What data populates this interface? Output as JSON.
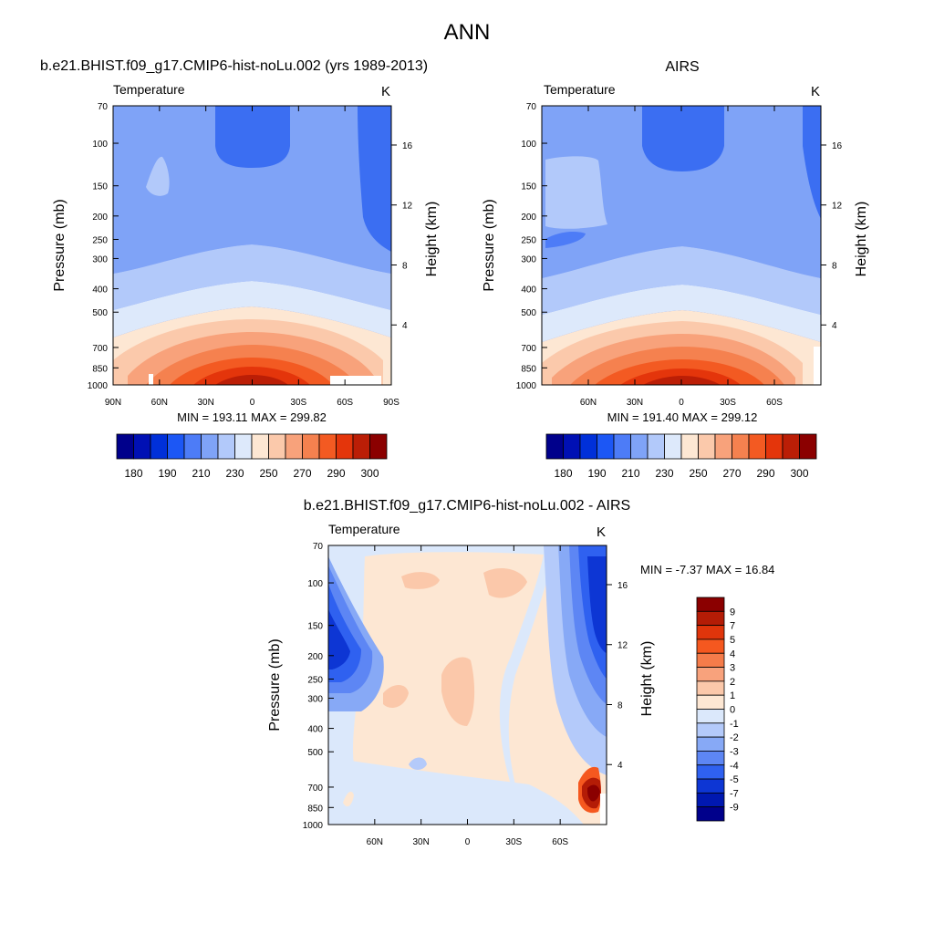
{
  "page_title": "ANN",
  "chart_data": [
    {
      "type": "heatmap",
      "title": "b.e21.BHIST.f09_g17.CMIP6-hist-noLu.002 (yrs 1989-2013)",
      "variable": "Temperature",
      "units": "K",
      "xlabel": "",
      "ylabel": "Pressure (mb)",
      "y2label": "Height (km)",
      "x_ticks": [
        "90N",
        "60N",
        "30N",
        "0",
        "30S",
        "60S",
        "90S"
      ],
      "x_range": [
        90,
        -90
      ],
      "y_ticks": [
        "70",
        "100",
        "150",
        "200",
        "250",
        "300",
        "400",
        "500",
        "700",
        "850",
        "1000"
      ],
      "y_range": [
        70,
        1000
      ],
      "y_scale": "log",
      "height_ticks": [
        "4",
        "8",
        "12",
        "16"
      ],
      "stats": "MIN = 193.11  MAX = 299.82",
      "colorbar": {
        "orientation": "horizontal",
        "labels": [
          "180",
          "190",
          "210",
          "230",
          "250",
          "270",
          "290",
          "300"
        ],
        "colors": [
          "#00008b",
          "#0010b4",
          "#0030d9",
          "#1c57f5",
          "#4d7cf7",
          "#7fa3f7",
          "#b2c9fa",
          "#dde9fb",
          "#fde7d3",
          "#fbc9ab",
          "#f8a27b",
          "#f5814f",
          "#f35a22",
          "#e4350b",
          "#bb1e06",
          "#8b0000"
        ]
      }
    },
    {
      "type": "heatmap",
      "title": "AIRS",
      "variable": "Temperature",
      "units": "K",
      "xlabel": "",
      "ylabel": "Pressure (mb)",
      "y2label": "Height (km)",
      "x_ticks": [
        "60N",
        "30N",
        "0",
        "30S",
        "60S"
      ],
      "x_range": [
        90,
        -90
      ],
      "y_ticks": [
        "70",
        "100",
        "150",
        "200",
        "250",
        "300",
        "400",
        "500",
        "700",
        "850",
        "1000"
      ],
      "y_range": [
        70,
        1000
      ],
      "y_scale": "log",
      "height_ticks": [
        "4",
        "8",
        "12",
        "16"
      ],
      "stats": "MIN = 191.40  MAX = 299.12",
      "colorbar": {
        "orientation": "horizontal",
        "labels": [
          "180",
          "190",
          "210",
          "230",
          "250",
          "270",
          "290",
          "300"
        ],
        "colors": [
          "#00008b",
          "#0010b4",
          "#0030d9",
          "#1c57f5",
          "#4d7cf7",
          "#7fa3f7",
          "#b2c9fa",
          "#dde9fb",
          "#fde7d3",
          "#fbc9ab",
          "#f8a27b",
          "#f5814f",
          "#f35a22",
          "#e4350b",
          "#bb1e06",
          "#8b0000"
        ]
      }
    },
    {
      "type": "heatmap",
      "title": "b.e21.BHIST.f09_g17.CMIP6-hist-noLu.002 - AIRS",
      "variable": "Temperature",
      "units": "K",
      "xlabel": "",
      "ylabel": "Pressure (mb)",
      "y2label": "Height (km)",
      "x_ticks": [
        "60N",
        "30N",
        "0",
        "30S",
        "60S"
      ],
      "x_range": [
        90,
        -90
      ],
      "y_ticks": [
        "70",
        "100",
        "150",
        "200",
        "250",
        "300",
        "400",
        "500",
        "700",
        "850",
        "1000"
      ],
      "y_range": [
        70,
        1000
      ],
      "y_scale": "log",
      "height_ticks": [
        "4",
        "8",
        "12",
        "16"
      ],
      "stats": "MIN =  -7.37  MAX =  16.84",
      "colorbar": {
        "orientation": "vertical",
        "labels": [
          "9",
          "7",
          "5",
          "4",
          "3",
          "2",
          "1",
          "0",
          "-1",
          "-2",
          "-3",
          "-4",
          "-5",
          "-7",
          "-9"
        ],
        "colors": [
          "#8b0000",
          "#b41c06",
          "#e0350b",
          "#f5581f",
          "#f57c4a",
          "#f8a27c",
          "#fbc8aa",
          "#fde7d3",
          "#dbe8fb",
          "#b4cafa",
          "#87a9f6",
          "#5d86f4",
          "#2f61f0",
          "#0d36d4",
          "#0018b0",
          "#00008b"
        ]
      }
    }
  ]
}
